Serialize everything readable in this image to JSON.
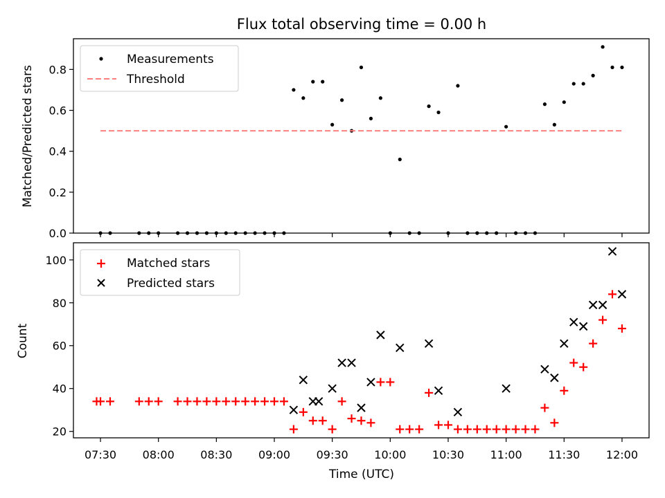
{
  "chart_data": [
    {
      "type": "scatter",
      "title": "Flux total observing time = 0.00 h",
      "ylabel": "Matched/Predicted stars",
      "xlabel": "",
      "ylim": [
        0,
        0.95
      ],
      "yticks": [
        0.0,
        0.2,
        0.4,
        0.6,
        0.8
      ],
      "ytick_labels": [
        "0.0",
        "0.2",
        "0.4",
        "0.6",
        "0.8"
      ],
      "xlim": [
        "07:16",
        "12:14"
      ],
      "legend_position": "top-left",
      "grid": false,
      "series": [
        {
          "name": "Measurements",
          "marker": "dot",
          "color": "#000000",
          "points": [
            [
              "07:30",
              0
            ],
            [
              "07:35",
              0
            ],
            [
              "07:50",
              0
            ],
            [
              "07:55",
              0
            ],
            [
              "08:00",
              0
            ],
            [
              "08:10",
              0
            ],
            [
              "08:15",
              0
            ],
            [
              "08:20",
              0
            ],
            [
              "08:25",
              0
            ],
            [
              "08:30",
              0
            ],
            [
              "08:35",
              0
            ],
            [
              "08:40",
              0
            ],
            [
              "08:45",
              0
            ],
            [
              "08:50",
              0
            ],
            [
              "08:55",
              0
            ],
            [
              "09:00",
              0
            ],
            [
              "09:05",
              0
            ],
            [
              "09:10",
              0.7
            ],
            [
              "09:15",
              0.66
            ],
            [
              "09:20",
              0.74
            ],
            [
              "09:25",
              0.74
            ],
            [
              "09:30",
              0.53
            ],
            [
              "09:35",
              0.65
            ],
            [
              "09:40",
              0.5
            ],
            [
              "09:45",
              0.81
            ],
            [
              "09:50",
              0.56
            ],
            [
              "09:55",
              0.66
            ],
            [
              "10:00",
              0
            ],
            [
              "10:05",
              0.36
            ],
            [
              "10:10",
              0
            ],
            [
              "10:15",
              0
            ],
            [
              "10:20",
              0.62
            ],
            [
              "10:25",
              0.59
            ],
            [
              "10:30",
              0
            ],
            [
              "10:35",
              0.72
            ],
            [
              "10:40",
              0
            ],
            [
              "10:45",
              0
            ],
            [
              "10:50",
              0
            ],
            [
              "10:55",
              0
            ],
            [
              "11:00",
              0.52
            ],
            [
              "11:05",
              0
            ],
            [
              "11:10",
              0
            ],
            [
              "11:15",
              0
            ],
            [
              "11:20",
              0.63
            ],
            [
              "11:25",
              0.53
            ],
            [
              "11:30",
              0.64
            ],
            [
              "11:35",
              0.73
            ],
            [
              "11:40",
              0.73
            ],
            [
              "11:45",
              0.77
            ],
            [
              "11:50",
              0.91
            ],
            [
              "11:55",
              0.81
            ],
            [
              "12:00",
              0.81
            ]
          ]
        },
        {
          "name": "Threshold",
          "marker": "dashed-line",
          "color": "#ff7f7f",
          "points": [
            [
              "07:30",
              0.5
            ],
            [
              "12:00",
              0.5
            ]
          ]
        }
      ]
    },
    {
      "type": "scatter",
      "title": "",
      "ylabel": "Count",
      "xlabel": "Time (UTC)",
      "ylim": [
        17,
        108
      ],
      "yticks": [
        20,
        40,
        60,
        80,
        100
      ],
      "ytick_labels": [
        "20",
        "40",
        "60",
        "80",
        "100"
      ],
      "xlim": [
        "07:16",
        "12:14"
      ],
      "xticks": [
        "07:30",
        "08:00",
        "08:30",
        "09:00",
        "09:30",
        "10:00",
        "10:30",
        "11:00",
        "11:30",
        "12:00"
      ],
      "xtick_labels": [
        "07:30",
        "08:00",
        "08:30",
        "09:00",
        "09:30",
        "10:00",
        "10:30",
        "11:00",
        "11:30",
        "12:00"
      ],
      "legend_position": "top-left",
      "grid": false,
      "series": [
        {
          "name": "Matched stars",
          "marker": "plus",
          "color": "#ff0000",
          "points": [
            [
              "07:28",
              34
            ],
            [
              "07:30",
              34
            ],
            [
              "07:35",
              34
            ],
            [
              "07:50",
              34
            ],
            [
              "07:55",
              34
            ],
            [
              "08:00",
              34
            ],
            [
              "08:10",
              34
            ],
            [
              "08:15",
              34
            ],
            [
              "08:20",
              34
            ],
            [
              "08:25",
              34
            ],
            [
              "08:30",
              34
            ],
            [
              "08:35",
              34
            ],
            [
              "08:40",
              34
            ],
            [
              "08:45",
              34
            ],
            [
              "08:50",
              34
            ],
            [
              "08:55",
              34
            ],
            [
              "09:00",
              34
            ],
            [
              "09:05",
              34
            ],
            [
              "09:10",
              21
            ],
            [
              "09:15",
              29
            ],
            [
              "09:20",
              25
            ],
            [
              "09:25",
              25
            ],
            [
              "09:30",
              21
            ],
            [
              "09:35",
              34
            ],
            [
              "09:40",
              26
            ],
            [
              "09:45",
              25
            ],
            [
              "09:50",
              24
            ],
            [
              "09:55",
              43
            ],
            [
              "10:00",
              43
            ],
            [
              "10:05",
              21
            ],
            [
              "10:10",
              21
            ],
            [
              "10:15",
              21
            ],
            [
              "10:20",
              38
            ],
            [
              "10:25",
              23
            ],
            [
              "10:30",
              23
            ],
            [
              "10:35",
              21
            ],
            [
              "10:40",
              21
            ],
            [
              "10:45",
              21
            ],
            [
              "10:50",
              21
            ],
            [
              "10:55",
              21
            ],
            [
              "11:00",
              21
            ],
            [
              "11:05",
              21
            ],
            [
              "11:10",
              21
            ],
            [
              "11:15",
              21
            ],
            [
              "11:20",
              31
            ],
            [
              "11:25",
              24
            ],
            [
              "11:30",
              39
            ],
            [
              "11:35",
              52
            ],
            [
              "11:40",
              50
            ],
            [
              "11:45",
              61
            ],
            [
              "11:50",
              72
            ],
            [
              "11:55",
              84
            ],
            [
              "12:00",
              68
            ]
          ]
        },
        {
          "name": "Predicted stars",
          "marker": "x",
          "color": "#000000",
          "points": [
            [
              "09:10",
              30
            ],
            [
              "09:15",
              44
            ],
            [
              "09:20",
              34
            ],
            [
              "09:23",
              34
            ],
            [
              "09:30",
              40
            ],
            [
              "09:35",
              52
            ],
            [
              "09:40",
              52
            ],
            [
              "09:45",
              31
            ],
            [
              "09:50",
              43
            ],
            [
              "09:55",
              65
            ],
            [
              "10:05",
              59
            ],
            [
              "10:20",
              61
            ],
            [
              "10:25",
              39
            ],
            [
              "10:35",
              29
            ],
            [
              "11:00",
              40
            ],
            [
              "11:20",
              49
            ],
            [
              "11:25",
              45
            ],
            [
              "11:30",
              61
            ],
            [
              "11:35",
              71
            ],
            [
              "11:40",
              69
            ],
            [
              "11:45",
              79
            ],
            [
              "11:50",
              79
            ],
            [
              "11:55",
              104
            ],
            [
              "12:00",
              84
            ]
          ]
        }
      ]
    }
  ]
}
